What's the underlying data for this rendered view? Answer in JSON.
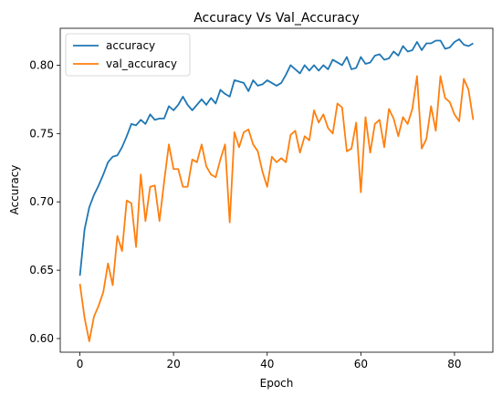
{
  "chart_data": {
    "type": "line",
    "title": "Accuracy Vs Val_Accuracy",
    "xlabel": "Epoch",
    "ylabel": "Accuracy",
    "xlim": [
      -4.2,
      88.2
    ],
    "ylim": [
      0.59,
      0.827
    ],
    "xticks": [
      0,
      20,
      40,
      60,
      80
    ],
    "yticks": [
      0.6,
      0.65,
      0.7,
      0.75,
      0.8
    ],
    "xtick_labels": [
      "0",
      "20",
      "40",
      "60",
      "80"
    ],
    "ytick_labels": [
      "0.60",
      "0.65",
      "0.70",
      "0.75",
      "0.80"
    ],
    "legend_position": "top-left",
    "grid": false,
    "x": [
      0,
      1,
      2,
      3,
      4,
      5,
      6,
      7,
      8,
      9,
      10,
      11,
      12,
      13,
      14,
      15,
      16,
      17,
      18,
      19,
      20,
      21,
      22,
      23,
      24,
      25,
      26,
      27,
      28,
      29,
      30,
      31,
      32,
      33,
      34,
      35,
      36,
      37,
      38,
      39,
      40,
      41,
      42,
      43,
      44,
      45,
      46,
      47,
      48,
      49,
      50,
      51,
      52,
      53,
      54,
      55,
      56,
      57,
      58,
      59,
      60,
      61,
      62,
      63,
      64,
      65,
      66,
      67,
      68,
      69,
      70,
      71,
      72,
      73,
      74,
      75,
      76,
      77,
      78,
      79,
      80,
      81,
      82,
      83,
      84
    ],
    "series": [
      {
        "name": "accuracy",
        "color": "#1f77b4",
        "values": [
          0.646,
          0.68,
          0.696,
          0.705,
          0.712,
          0.72,
          0.729,
          0.733,
          0.734,
          0.74,
          0.748,
          0.757,
          0.756,
          0.76,
          0.757,
          0.764,
          0.76,
          0.761,
          0.761,
          0.77,
          0.767,
          0.771,
          0.777,
          0.771,
          0.767,
          0.771,
          0.775,
          0.771,
          0.776,
          0.772,
          0.782,
          0.779,
          0.777,
          0.789,
          0.788,
          0.787,
          0.781,
          0.789,
          0.785,
          0.786,
          0.789,
          0.787,
          0.785,
          0.787,
          0.793,
          0.8,
          0.797,
          0.794,
          0.8,
          0.796,
          0.8,
          0.796,
          0.8,
          0.797,
          0.804,
          0.802,
          0.8,
          0.806,
          0.797,
          0.798,
          0.806,
          0.801,
          0.802,
          0.807,
          0.808,
          0.804,
          0.805,
          0.81,
          0.807,
          0.814,
          0.81,
          0.811,
          0.817,
          0.811,
          0.816,
          0.816,
          0.818,
          0.818,
          0.812,
          0.813,
          0.817,
          0.819,
          0.815,
          0.814,
          0.816
        ]
      },
      {
        "name": "val_accuracy",
        "color": "#ff7f0e",
        "values": [
          0.64,
          0.615,
          0.598,
          0.616,
          0.624,
          0.634,
          0.655,
          0.639,
          0.675,
          0.664,
          0.701,
          0.699,
          0.667,
          0.72,
          0.686,
          0.711,
          0.712,
          0.686,
          0.715,
          0.742,
          0.724,
          0.724,
          0.711,
          0.711,
          0.731,
          0.729,
          0.742,
          0.726,
          0.72,
          0.718,
          0.731,
          0.742,
          0.685,
          0.751,
          0.74,
          0.751,
          0.753,
          0.742,
          0.737,
          0.722,
          0.711,
          0.733,
          0.729,
          0.732,
          0.729,
          0.749,
          0.752,
          0.736,
          0.748,
          0.745,
          0.767,
          0.758,
          0.764,
          0.754,
          0.75,
          0.772,
          0.769,
          0.737,
          0.739,
          0.758,
          0.707,
          0.762,
          0.736,
          0.757,
          0.76,
          0.74,
          0.768,
          0.761,
          0.748,
          0.762,
          0.757,
          0.768,
          0.792,
          0.739,
          0.746,
          0.77,
          0.752,
          0.792,
          0.776,
          0.773,
          0.764,
          0.759,
          0.79,
          0.782,
          0.76
        ]
      }
    ]
  }
}
